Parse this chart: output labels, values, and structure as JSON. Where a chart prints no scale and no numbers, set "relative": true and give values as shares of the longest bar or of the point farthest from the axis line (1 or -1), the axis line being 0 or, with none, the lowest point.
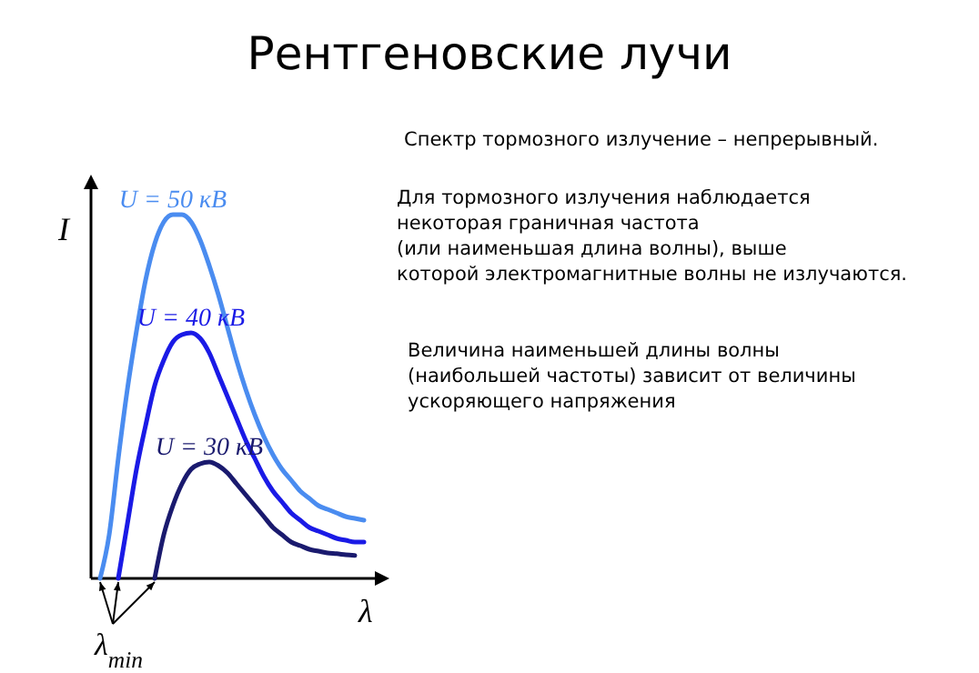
{
  "chart_data": {
    "type": "line",
    "title": "Рентгеновские лучи",
    "xlabel": "λ",
    "ylabel": "I",
    "relative": true,
    "categories": [
      null,
      null,
      null,
      null,
      null,
      null,
      null,
      null,
      null,
      null,
      null,
      null,
      null,
      null,
      null,
      null,
      null,
      null,
      null,
      null,
      null,
      null,
      null,
      null,
      null,
      null,
      null,
      null,
      null,
      null,
      null
    ],
    "series": [
      {
        "name": "U = 50 кВ",
        "color": "#4a8cf0",
        "values": [
          null,
          0,
          0.12,
          0.33,
          0.52,
          0.68,
          0.82,
          0.92,
          0.98,
          1.0,
          1.0,
          0.98,
          0.93,
          0.86,
          0.78,
          0.69,
          0.6,
          0.52,
          0.45,
          0.39,
          0.34,
          0.3,
          0.27,
          0.24,
          0.22,
          0.2,
          0.19,
          0.18,
          0.17,
          0.165,
          0.16
        ]
      },
      {
        "name": "U = 40 кВ",
        "color": "#1a1ae6",
        "values": [
          null,
          null,
          null,
          0,
          0.15,
          0.3,
          0.42,
          0.53,
          0.6,
          0.65,
          0.67,
          0.675,
          0.66,
          0.62,
          0.56,
          0.5,
          0.44,
          0.38,
          0.33,
          0.28,
          0.24,
          0.21,
          0.18,
          0.16,
          0.14,
          0.13,
          0.12,
          0.11,
          0.105,
          0.1,
          0.1
        ]
      },
      {
        "name": "U = 30 кВ",
        "color": "#1a1a6e",
        "values": [
          null,
          null,
          null,
          null,
          null,
          null,
          null,
          0,
          0.12,
          0.2,
          0.26,
          0.3,
          0.315,
          0.32,
          0.31,
          0.29,
          0.26,
          0.23,
          0.2,
          0.17,
          0.14,
          0.12,
          0.1,
          0.09,
          0.08,
          0.075,
          0.07,
          0.068,
          0.065,
          0.063,
          null
        ]
      }
    ],
    "annotations": [
      "λ$_{min}$",
      "Спектр тормозного  излучение – непрерывный.",
      "Для тормозного  излучения наблюдается\nнекоторая граничная частота\n(или наименьшая длина волны), выше\nкоторой электромагнитные волны не излучаются.",
      "Величина наименьшей длины волны\n(наибольшей частоты) зависит от величины\nускоряющего напряжения"
    ]
  }
}
